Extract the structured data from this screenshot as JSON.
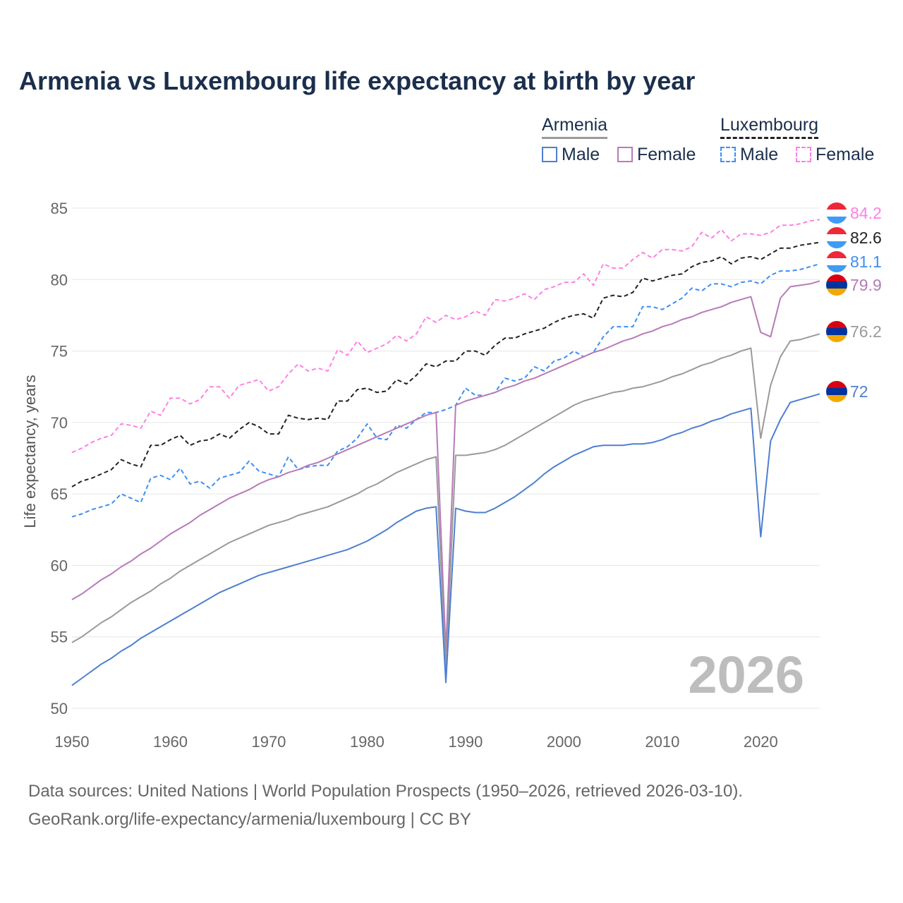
{
  "title": "Armenia vs Luxembourg life expectancy at birth by year",
  "legend": {
    "armenia": "Armenia",
    "luxembourg": "Luxembourg",
    "male": "Male",
    "female": "Female"
  },
  "watermark": "2026",
  "footer": {
    "line1": "Data sources: United Nations | World Population Prospects (1950–2026, retrieved 2026-03-10).",
    "line2": "GeoRank.org/life-expectancy/armenia/luxembourg | CC BY"
  },
  "chart_data": {
    "type": "line",
    "title": "Armenia vs Luxembourg life expectancy at birth by year",
    "xlabel": "",
    "ylabel": "Life expectancy, years",
    "xlim": [
      1950,
      2026
    ],
    "ylim": [
      50,
      85
    ],
    "xticks": [
      1950,
      1960,
      1970,
      1980,
      1990,
      2000,
      2010,
      2020
    ],
    "yticks": [
      50,
      55,
      60,
      65,
      70,
      75,
      80,
      85
    ],
    "grid": true,
    "legend_position": "top-right",
    "series": [
      {
        "name": "Luxembourg Female",
        "color": "#ff7fe6",
        "dashed": true,
        "flag": "luxembourg",
        "end_label": "84.2",
        "values": [
          67.9,
          68.2,
          68.6,
          68.9,
          69.1,
          69.9,
          69.8,
          69.6,
          70.8,
          70.5,
          71.7,
          71.7,
          71.3,
          71.6,
          72.5,
          72.5,
          71.7,
          72.6,
          72.8,
          73.0,
          72.2,
          72.5,
          73.4,
          74.1,
          73.6,
          73.8,
          73.6,
          75.1,
          74.7,
          75.7,
          74.9,
          75.2,
          75.5,
          76.1,
          75.7,
          76.2,
          77.4,
          77.0,
          77.5,
          77.2,
          77.4,
          77.8,
          77.5,
          78.6,
          78.5,
          78.7,
          79.0,
          78.6,
          79.3,
          79.5,
          79.8,
          79.8,
          80.4,
          79.6,
          81.1,
          80.8,
          80.8,
          81.4,
          81.9,
          81.5,
          82.1,
          82.1,
          82.0,
          82.3,
          83.3,
          82.9,
          83.5,
          82.7,
          83.2,
          83.2,
          83.1,
          83.3,
          83.8,
          83.8,
          83.9,
          84.1,
          84.2
        ]
      },
      {
        "name": "Luxembourg",
        "color": "#222222",
        "dashed": true,
        "flag": "luxembourg",
        "end_label": "82.6",
        "values": [
          65.5,
          65.9,
          66.1,
          66.4,
          66.7,
          67.4,
          67.1,
          66.9,
          68.4,
          68.4,
          68.8,
          69.1,
          68.4,
          68.7,
          68.8,
          69.2,
          68.9,
          69.5,
          70.0,
          69.7,
          69.2,
          69.2,
          70.5,
          70.3,
          70.2,
          70.3,
          70.2,
          71.5,
          71.5,
          72.3,
          72.4,
          72.1,
          72.2,
          73.0,
          72.7,
          73.3,
          74.1,
          73.9,
          74.3,
          74.3,
          75.0,
          75.0,
          74.7,
          75.4,
          75.9,
          75.9,
          76.2,
          76.4,
          76.6,
          77.0,
          77.3,
          77.5,
          77.6,
          77.3,
          78.7,
          78.9,
          78.8,
          79.1,
          80.1,
          79.9,
          80.1,
          80.3,
          80.4,
          80.9,
          81.2,
          81.3,
          81.6,
          81.1,
          81.5,
          81.6,
          81.4,
          81.8,
          82.2,
          82.2,
          82.4,
          82.5,
          82.6
        ]
      },
      {
        "name": "Luxembourg Male",
        "color": "#3d8ef5",
        "dashed": true,
        "flag": "luxembourg",
        "end_label": "81.1",
        "values": [
          63.4,
          63.6,
          63.9,
          64.1,
          64.3,
          65.0,
          64.7,
          64.4,
          66.1,
          66.3,
          66.0,
          66.8,
          65.7,
          65.9,
          65.4,
          66.1,
          66.3,
          66.5,
          67.3,
          66.6,
          66.4,
          66.2,
          67.6,
          66.7,
          66.9,
          67.0,
          67.0,
          68.0,
          68.3,
          68.9,
          69.9,
          68.9,
          68.8,
          69.8,
          69.6,
          70.2,
          70.7,
          70.7,
          70.9,
          71.2,
          72.4,
          71.9,
          71.9,
          72.1,
          73.1,
          72.9,
          73.1,
          73.9,
          73.6,
          74.3,
          74.5,
          75.0,
          74.6,
          74.9,
          76.0,
          76.7,
          76.7,
          76.7,
          78.1,
          78.1,
          77.9,
          78.3,
          78.7,
          79.4,
          79.2,
          79.7,
          79.7,
          79.5,
          79.8,
          79.9,
          79.7,
          80.3,
          80.6,
          80.6,
          80.7,
          80.9,
          81.1
        ]
      },
      {
        "name": "Armenia Female",
        "color": "#b77ab8",
        "dashed": false,
        "flag": "armenia",
        "end_label": "79.9",
        "values": [
          57.6,
          58.0,
          58.5,
          59.0,
          59.4,
          59.9,
          60.3,
          60.8,
          61.2,
          61.7,
          62.2,
          62.6,
          63.0,
          63.5,
          63.9,
          64.3,
          64.7,
          65.0,
          65.3,
          65.7,
          66.0,
          66.2,
          66.5,
          66.7,
          67.0,
          67.2,
          67.5,
          67.8,
          68.1,
          68.4,
          68.7,
          69.0,
          69.3,
          69.6,
          69.9,
          70.2,
          70.5,
          70.7,
          54.0,
          71.2,
          71.5,
          71.7,
          71.9,
          72.1,
          72.4,
          72.6,
          72.9,
          73.1,
          73.4,
          73.7,
          74.0,
          74.3,
          74.6,
          74.9,
          75.1,
          75.4,
          75.7,
          75.9,
          76.2,
          76.4,
          76.7,
          76.9,
          77.2,
          77.4,
          77.7,
          77.9,
          78.1,
          78.4,
          78.6,
          78.8,
          76.3,
          76.0,
          78.7,
          79.5,
          79.6,
          79.7,
          79.9
        ]
      },
      {
        "name": "Armenia",
        "color": "#9a9a9a",
        "dashed": false,
        "flag": "armenia",
        "end_label": "76.2",
        "values": [
          54.6,
          55.0,
          55.5,
          56.0,
          56.4,
          56.9,
          57.4,
          57.8,
          58.2,
          58.7,
          59.1,
          59.6,
          60.0,
          60.4,
          60.8,
          61.2,
          61.6,
          61.9,
          62.2,
          62.5,
          62.8,
          63.0,
          63.2,
          63.5,
          63.7,
          63.9,
          64.1,
          64.4,
          64.7,
          65.0,
          65.4,
          65.7,
          66.1,
          66.5,
          66.8,
          67.1,
          67.4,
          67.6,
          52.7,
          67.7,
          67.7,
          67.8,
          67.9,
          68.1,
          68.4,
          68.8,
          69.2,
          69.6,
          70.0,
          70.4,
          70.8,
          71.2,
          71.5,
          71.7,
          71.9,
          72.1,
          72.2,
          72.4,
          72.5,
          72.7,
          72.9,
          73.2,
          73.4,
          73.7,
          74.0,
          74.2,
          74.5,
          74.7,
          75.0,
          75.2,
          68.9,
          72.6,
          74.6,
          75.7,
          75.8,
          76.0,
          76.2
        ]
      },
      {
        "name": "Armenia Male",
        "color": "#4e7fd1",
        "dashed": false,
        "flag": "armenia",
        "end_label": "72",
        "values": [
          51.6,
          52.1,
          52.6,
          53.1,
          53.5,
          54.0,
          54.4,
          54.9,
          55.3,
          55.7,
          56.1,
          56.5,
          56.9,
          57.3,
          57.7,
          58.1,
          58.4,
          58.7,
          59.0,
          59.3,
          59.5,
          59.7,
          59.9,
          60.1,
          60.3,
          60.5,
          60.7,
          60.9,
          61.1,
          61.4,
          61.7,
          62.1,
          62.5,
          63.0,
          63.4,
          63.8,
          64.0,
          64.1,
          51.8,
          64.0,
          63.8,
          63.7,
          63.7,
          64.0,
          64.4,
          64.8,
          65.3,
          65.8,
          66.4,
          66.9,
          67.3,
          67.7,
          68.0,
          68.3,
          68.4,
          68.4,
          68.4,
          68.5,
          68.5,
          68.6,
          68.8,
          69.1,
          69.3,
          69.6,
          69.8,
          70.1,
          70.3,
          70.6,
          70.8,
          71.0,
          62.0,
          68.7,
          70.2,
          71.4,
          71.6,
          71.8,
          72.0
        ]
      }
    ]
  }
}
